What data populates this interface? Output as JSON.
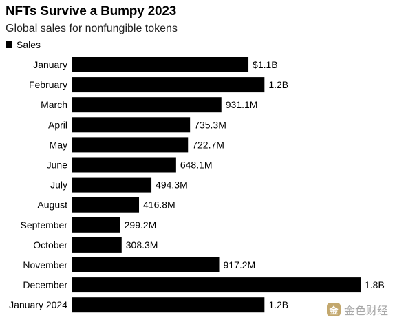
{
  "chart_data": {
    "type": "bar",
    "orientation": "horizontal",
    "title": "NFTs Survive a Bumpy 2023",
    "subtitle": "Global sales for nonfungible tokens",
    "legend": {
      "entries": [
        "Sales"
      ],
      "placement": "top-left"
    },
    "categories": [
      "January",
      "February",
      "March",
      "April",
      "May",
      "June",
      "July",
      "August",
      "September",
      "October",
      "November",
      "December",
      "January 2024"
    ],
    "values": [
      1.1,
      1.2,
      0.9311,
      0.7353,
      0.7227,
      0.6481,
      0.4943,
      0.4168,
      0.2992,
      0.3083,
      0.9172,
      1.8,
      1.2
    ],
    "value_labels": [
      "$1.1B",
      "1.2B",
      "931.1M",
      "735.3M",
      "722.7M",
      "648.1M",
      "494.3M",
      "416.8M",
      "299.2M",
      "308.3M",
      "917.2M",
      "1.8B",
      "1.2B"
    ],
    "unit": "USD billions",
    "xlim": [
      0,
      1.8
    ],
    "grid": false,
    "bar_color": "#000000"
  },
  "watermark": {
    "logo": "金",
    "text": "金色财经"
  }
}
